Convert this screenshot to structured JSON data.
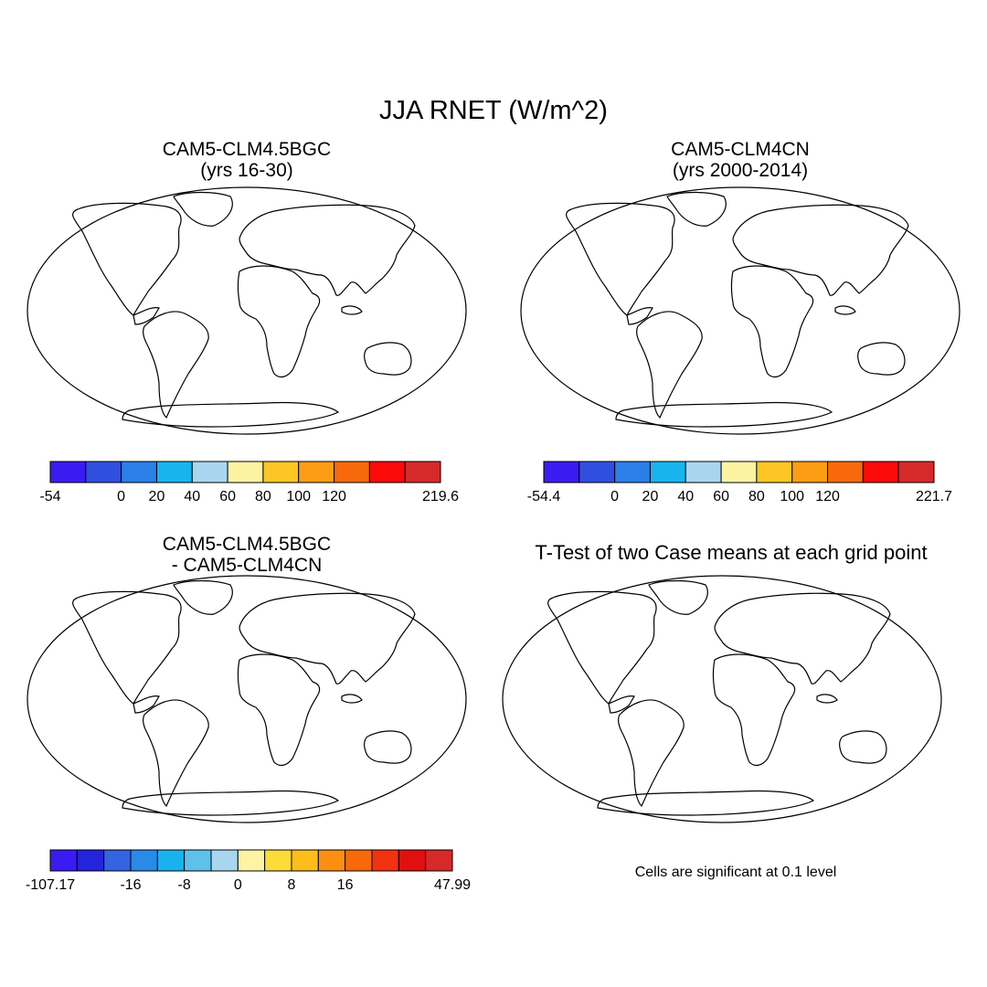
{
  "figure": {
    "title": "JJA RNET (W/m^2)",
    "panels": [
      {
        "title_lines": [
          "CAM5-CLM4.5BGC",
          "(yrs 16-30)"
        ],
        "colorbar": {
          "colors": [
            "#3a1cf2",
            "#2e4fe0",
            "#2a7fe8",
            "#18b4ee",
            "#a9d6ef",
            "#fdf3a2",
            "#fdc625",
            "#fc9d14",
            "#f8690c",
            "#fd0a0a",
            "#d62a2a"
          ],
          "labels": [
            "-54",
            "0",
            "20",
            "40",
            "60",
            "80",
            "100",
            "120",
            "219.6"
          ],
          "label_edges": [
            0,
            2,
            3,
            4,
            5,
            6,
            7,
            8,
            10
          ]
        }
      },
      {
        "title_lines": [
          "CAM5-CLM4CN",
          "(yrs 2000-2014)"
        ],
        "colorbar": {
          "colors": [
            "#3a1cf2",
            "#2e4fe0",
            "#2a7fe8",
            "#18b4ee",
            "#a9d6ef",
            "#fdf3a2",
            "#fdc625",
            "#fc9d14",
            "#f8690c",
            "#fd0a0a",
            "#d62a2a"
          ],
          "labels": [
            "-54.4",
            "0",
            "20",
            "40",
            "60",
            "80",
            "100",
            "120",
            "221.7"
          ],
          "label_edges": [
            0,
            2,
            3,
            4,
            5,
            6,
            7,
            8,
            10
          ]
        }
      },
      {
        "title_lines": [
          "CAM5-CLM4.5BGC",
          "- CAM5-CLM4CN"
        ],
        "colorbar": {
          "colors": [
            "#3a1cf2",
            "#2424dc",
            "#3564e2",
            "#2a8ae8",
            "#1ab2ee",
            "#5cc2ec",
            "#a9d6ef",
            "#fdf3a2",
            "#fddc3a",
            "#fdbe1c",
            "#fc8f10",
            "#f8690c",
            "#f33210",
            "#e01010",
            "#d62a2a"
          ],
          "labels": [
            "-107.17",
            "-16",
            "-8",
            "0",
            "8",
            "16",
            "47.99"
          ],
          "label_edges": [
            0,
            3,
            5,
            7,
            9,
            11,
            14
          ]
        }
      },
      {
        "title": "T-Test of two Case means at each grid point",
        "note": "Cells are significant at 0.1 level",
        "significant_color": "#f20000"
      }
    ]
  }
}
